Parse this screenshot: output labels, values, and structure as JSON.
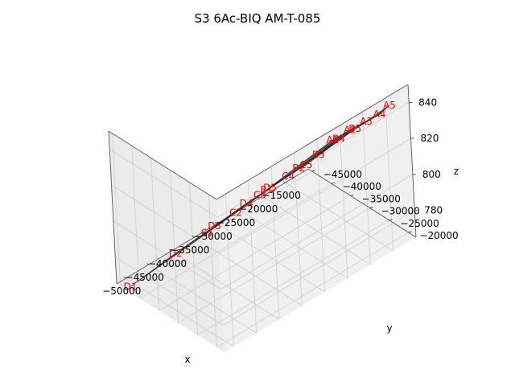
{
  "chart_data": {
    "type": "surface3d",
    "title": "S3 6Ac-BIQ AM-T-085",
    "xlabel": "x",
    "ylabel": "y",
    "zlabel": "z",
    "xlim": [
      -52000,
      -10000
    ],
    "ylim": [
      -46000,
      -18000
    ],
    "zlim": [
      765,
      850
    ],
    "x_ticks": [
      -50000,
      -45000,
      -40000,
      -35000,
      -30000,
      -25000,
      -20000,
      -15000
    ],
    "x_tick_labels": [
      "−50000",
      "−45000",
      "−40000",
      "−35000",
      "−30000",
      "−25000",
      "−20000",
      "−15000"
    ],
    "y_ticks": [
      -45000,
      -40000,
      -35000,
      -30000,
      -25000,
      -20000
    ],
    "y_tick_labels": [
      "−45000",
      "−40000",
      "−35000",
      "−30000",
      "−25000",
      "−20000"
    ],
    "z_ticks": [
      780,
      800,
      820,
      840
    ],
    "z_tick_labels": [
      "780",
      "800",
      "820",
      "840"
    ],
    "grid": true,
    "surface_color": "#4a4a4a",
    "label_color": "#ff0000",
    "pane_color": "#f2f2f2",
    "points": [
      {
        "label": "A1",
        "x": -18750,
        "y": -27950,
        "z": 819
      },
      {
        "label": "A2",
        "x": -16250,
        "y": -26300,
        "z": 823
      },
      {
        "label": "A3",
        "x": -14000,
        "y": -24700,
        "z": 826.5
      },
      {
        "label": "A4",
        "x": -12200,
        "y": -23300,
        "z": 829.5
      },
      {
        "label": "A5",
        "x": -11000,
        "y": -22000,
        "z": 834.5
      },
      {
        "label": "B1",
        "x": -29050,
        "y": -33400,
        "z": 799.5
      },
      {
        "label": "B2",
        "x": -24200,
        "y": -30600,
        "z": 808
      },
      {
        "label": "B3",
        "x": -21150,
        "y": -28950,
        "z": 813
      },
      {
        "label": "B4",
        "x": -17850,
        "y": -27450,
        "z": 819
      },
      {
        "label": "B5",
        "x": -15500,
        "y": -25900,
        "z": 823
      },
      {
        "label": "C1",
        "x": -38150,
        "y": -38450,
        "z": 782.5
      },
      {
        "label": "C2",
        "x": -33800,
        "y": -36000,
        "z": 790.5
      },
      {
        "label": "C3",
        "x": -30150,
        "y": -33900,
        "z": 797.5
      },
      {
        "label": "C4",
        "x": -25700,
        "y": -31600,
        "z": 804.5
      },
      {
        "label": "C5",
        "x": -22950,
        "y": -30150,
        "z": 808.5
      },
      {
        "label": "D1",
        "x": -49850,
        "y": -45050,
        "z": 761.5
      },
      {
        "label": "D2",
        "x": -42850,
        "y": -41300,
        "z": 774.5
      },
      {
        "label": "D3",
        "x": -36900,
        "y": -38000,
        "z": 785
      },
      {
        "label": "D4",
        "x": -32050,
        "y": -35250,
        "z": 794
      },
      {
        "label": "D5",
        "x": -28450,
        "y": -33200,
        "z": 800
      }
    ],
    "grid_rows": [
      [
        "D1",
        "D2",
        "D3",
        "D4",
        "D5"
      ],
      [
        "C1",
        "C2",
        "C3",
        "C4",
        "C5"
      ],
      [
        "B1",
        "B2",
        "B3",
        "B4",
        "B5"
      ],
      [
        "A1",
        "A2",
        "A3",
        "A4",
        "A5"
      ]
    ]
  }
}
